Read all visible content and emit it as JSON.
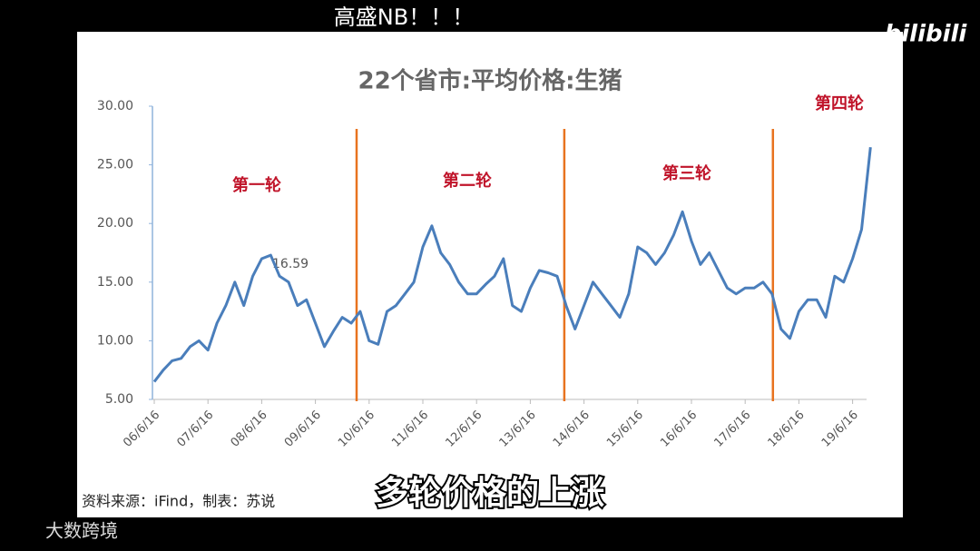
{
  "overlay": {
    "top_text": "高盛NB！！！",
    "logo": "bilibili",
    "caption": "多轮价格的上涨",
    "watermark": "大数跨境"
  },
  "chart_data": {
    "type": "line",
    "title": "22个省市:平均价格:生猪",
    "source": "资料来源：iFind，制表：苏说",
    "annotation": "16.59",
    "rounds": [
      "第一轮",
      "第二轮",
      "第三轮",
      "第四轮"
    ],
    "dividers": [
      22.6,
      45.8,
      69.1
    ],
    "divider_color": "#e8731f",
    "categories": [
      "06/6/16",
      null,
      null,
      null,
      null,
      null,
      "07/6/16",
      null,
      null,
      null,
      null,
      null,
      "08/6/16",
      null,
      null,
      null,
      null,
      null,
      "09/6/16",
      null,
      null,
      null,
      null,
      null,
      "10/6/16",
      null,
      null,
      null,
      null,
      null,
      "11/6/16",
      null,
      null,
      null,
      null,
      null,
      "12/6/16",
      null,
      null,
      null,
      null,
      null,
      "13/6/16",
      null,
      null,
      null,
      null,
      null,
      "14/6/16",
      null,
      null,
      null,
      null,
      null,
      "15/6/16",
      null,
      null,
      null,
      null,
      null,
      "16/6/16",
      null,
      null,
      null,
      null,
      null,
      "17/6/16",
      null,
      null,
      null,
      null,
      null,
      "18/6/16",
      null,
      null,
      null,
      null,
      null,
      "19/6/16",
      null,
      null
    ],
    "series": [
      {
        "color": "#4a7ebb",
        "values": [
          6.5,
          7.5,
          8.3,
          8.5,
          9.5,
          10,
          9.2,
          11.5,
          13,
          15,
          13,
          15.5,
          17,
          17.3,
          15.5,
          15,
          13,
          13.5,
          11.5,
          9.5,
          10.8,
          12,
          11.5,
          12.5,
          10,
          9.7,
          12.5,
          13,
          14,
          15,
          18,
          19.8,
          17.5,
          16.5,
          15,
          14,
          14,
          14.8,
          15.5,
          17,
          13,
          12.5,
          14.5,
          16,
          15.8,
          15.5,
          13,
          11,
          13,
          15,
          14,
          13,
          12,
          14,
          18,
          17.5,
          16.5,
          17.5,
          19,
          21,
          18.5,
          16.5,
          17.5,
          16,
          14.5,
          14,
          14.5,
          14.5,
          15,
          14,
          11,
          10.2,
          12.5,
          13.5,
          13.5,
          12,
          15.5,
          15,
          17,
          19.5,
          26.5
        ]
      }
    ],
    "ylim": [
      5,
      30
    ],
    "yticks": [
      {
        "value": 5,
        "label": "5.00"
      },
      {
        "value": 10,
        "label": "10.00"
      },
      {
        "value": 15,
        "label": "15.00"
      },
      {
        "value": 20,
        "label": "20.00"
      },
      {
        "value": 25,
        "label": "25.00"
      },
      {
        "value": 30,
        "label": "30.00"
      }
    ]
  }
}
